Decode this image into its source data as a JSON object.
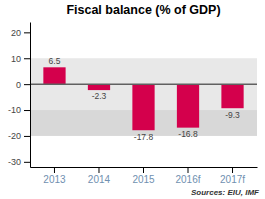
{
  "chart_data": {
    "type": "bar",
    "title": "Fiscal balance (% of GDP)",
    "categories": [
      "2013",
      "2014",
      "2015",
      "2016f",
      "2017f"
    ],
    "values": [
      6.5,
      -2.3,
      -17.8,
      -16.8,
      -9.3
    ],
    "color": "#d4004c",
    "ylim": [
      -32,
      24
    ],
    "yticks": [
      -30,
      -20,
      -10,
      0,
      10,
      20
    ],
    "bands": [
      {
        "from": -10,
        "to": 10,
        "color": "#e8e8e8"
      },
      {
        "from": -20,
        "to": -10,
        "color": "#d8d8d8"
      }
    ],
    "annotations": [
      "Sources: EIU, IMF"
    ],
    "grid": false,
    "data_labels": true
  }
}
